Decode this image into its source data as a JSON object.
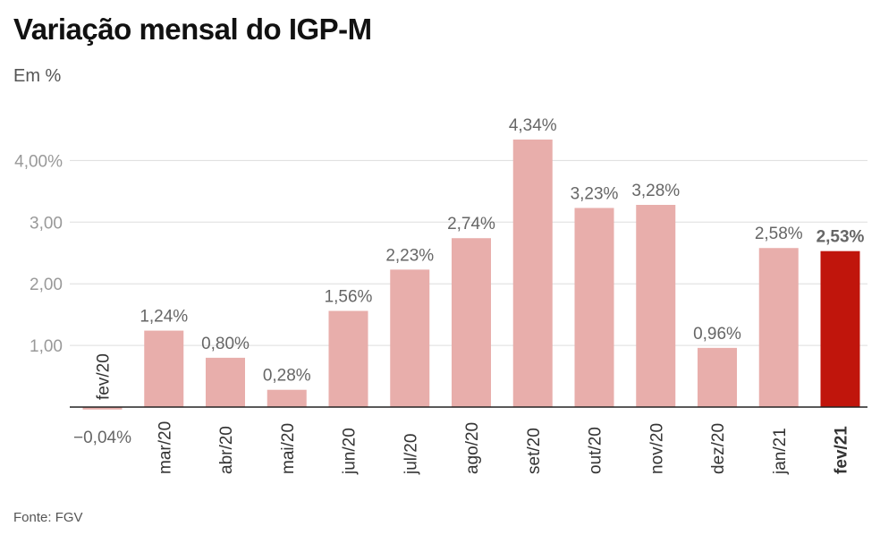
{
  "title": "Variação mensal do IGP-M",
  "subtitle": "Em %",
  "source": "Fonte: FGV",
  "colors": {
    "bar": "#e8aeab",
    "highlight": "#c0150c",
    "grid": "#dddddd",
    "axis": "#222222",
    "tick": "#999999",
    "label": "#666666"
  },
  "chart_data": {
    "type": "bar",
    "categories": [
      "fev/20",
      "mar/20",
      "abr/20",
      "mai/20",
      "jun/20",
      "jul/20",
      "ago/20",
      "set/20",
      "out/20",
      "nov/20",
      "dez/20",
      "jan/21",
      "fev/21"
    ],
    "values": [
      -0.04,
      1.24,
      0.8,
      0.28,
      1.56,
      2.23,
      2.74,
      4.34,
      3.23,
      3.28,
      0.96,
      2.58,
      2.53
    ],
    "value_labels": [
      "−0,04%",
      "1,24%",
      "0,80%",
      "0,28%",
      "1,56%",
      "2,23%",
      "2,74%",
      "4,34%",
      "3,23%",
      "3,28%",
      "0,96%",
      "2,58%",
      "2,53%"
    ],
    "highlight_index": 12,
    "y_ticks": [
      1,
      2,
      3,
      4
    ],
    "y_tick_labels": [
      "1,00",
      "2,00",
      "3,00",
      "4,00%"
    ],
    "ylim": [
      0,
      4.34
    ],
    "grid": true,
    "xlabel": "",
    "ylabel": ""
  }
}
